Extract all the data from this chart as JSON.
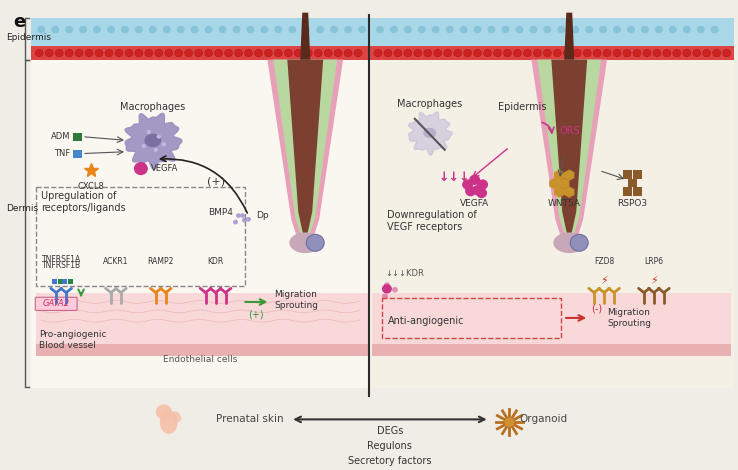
{
  "bg_color": "#f0ede6",
  "title_label": "e",
  "epidermis_label": "Epidermis",
  "dermis_label": "Dermis",
  "left_macrophage_label": "Macrophages",
  "right_macrophage_label": "Macrophages",
  "left_factors": [
    "ADM",
    "TNF",
    "CXCL8",
    "VEGFA"
  ],
  "left_box_label": "Upregulation of\nreceptors/ligands",
  "left_inner_label": "Pro-angiogenic\nBlood vessel",
  "gata2_label": "GATA2",
  "left_migration": "Migration\nSprouting",
  "left_plus": "(+)",
  "left_bmp4": "BMP4",
  "left_dp": "Dp",
  "endothelial_label": "Endothelial cells",
  "right_epidermis_label": "Epidermis",
  "right_ors_label": "ORS",
  "right_factors": [
    "VEGFA",
    "WNT5A",
    "RSPO3"
  ],
  "right_vegf_label": "Downregulation of\nVEGF receptors",
  "right_kdr_label": "↓↓↓KDR",
  "right_receptors": [
    "FZD8",
    "LRP6"
  ],
  "right_anti": "Anti-angiogenic",
  "right_migration": "Migration\nSprouting",
  "right_minus": "(-)",
  "bottom_left_label": "Prenatal skin",
  "bottom_right_label": "Organoid",
  "bottom_center": "DEGs\nRegulons\nSecretory factors",
  "center_line_color": "#2c2c2c",
  "macrophage_color": "#9b8fc0",
  "vegfa_color": "#cc3388",
  "cxcl8_color": "#e8851a",
  "tnf_color": "#4488cc",
  "adm_color": "#2d7a3a",
  "green_arrow_color": "#3a9a3a",
  "red_arrow_color": "#cc3333",
  "wnt5a_color": "#c8922a",
  "rspo3_color": "#8b5a2b",
  "fzd8_color": "#c8922a",
  "lrp6_color": "#8b5a2b",
  "epi_cyan": "#a8d8e8",
  "epi_red": "#dd4444",
  "follicle_pink": "#e8a0b8",
  "follicle_green": "#b8d8a0",
  "follicle_brown": "#7b4030",
  "hair_brown": "#5a2a1a",
  "dp_color": "#c8a8b8",
  "dp_cell_color": "#9090bb"
}
